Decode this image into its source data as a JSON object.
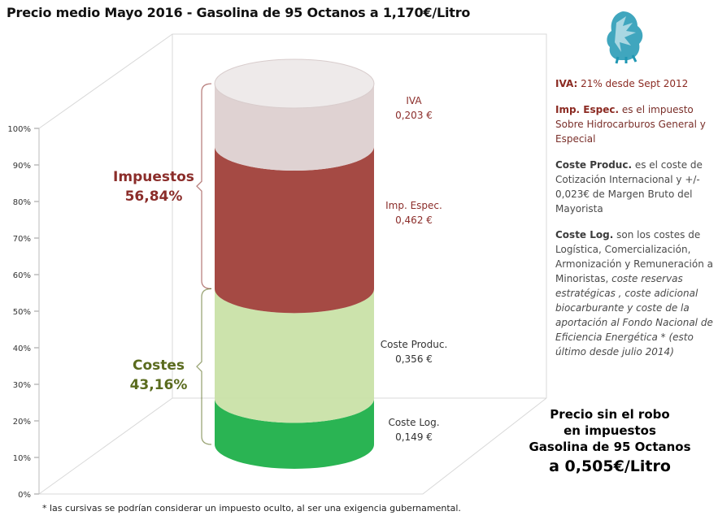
{
  "title": "Precio medio Mayo 2016 - Gasolina  de 95 Octanos  a 1,170€/Litro",
  "chart_data": {
    "type": "bar",
    "categories": [
      "Coste Log.",
      "Coste Produc.",
      "Imp. Espec.",
      "IVA"
    ],
    "series": [
      {
        "name": "Coste Log.",
        "value": 0.149,
        "label": "0,149 €",
        "color": "#1fb04a"
      },
      {
        "name": "Coste Produc.",
        "value": 0.356,
        "label": "0,356 €",
        "color": "#c9e1a8"
      },
      {
        "name": "Imp. Espec.",
        "value": 0.462,
        "label": "0,462 €",
        "color": "#a0403a"
      },
      {
        "name": "IVA",
        "value": 0.203,
        "label": "0,203 €",
        "color": "#ddd0d0"
      }
    ],
    "total": 1.17,
    "y_ticks": [
      "0%",
      "10%",
      "20%",
      "30%",
      "40%",
      "50%",
      "60%",
      "70%",
      "80%",
      "90%",
      "100%"
    ],
    "ylim": [
      0,
      1
    ],
    "groups": [
      {
        "name": "Impuestos",
        "pct": "56,84%",
        "color": "#8b2d2a",
        "from": 0.4316,
        "to": 1.0
      },
      {
        "name": "Costes",
        "pct": "43,16%",
        "color": "#5a6b1e",
        "from": 0.0,
        "to": 0.4316
      }
    ]
  },
  "notes": {
    "iva_key": "IVA:",
    "iva_text": " 21% desde Sept 2012",
    "imp_key": "Imp. Espec.",
    "imp_text": " es el impuesto Sobre Hidrocarburos General y Especial",
    "prod_key": "Coste Produc.",
    "prod_text": " es el coste de Cotización Internacional y +/- 0,023€ de Margen Bruto del Mayorista",
    "log_key": "Coste Log.",
    "log_text": " son los costes de Logística, Comercialización, Armonización y Remuneración a Minoristas, ",
    "log_italic": "coste reservas estratégicas , coste adicional biocarburante y coste de la aportación al Fondo Nacional de Eficiencia Energética * (esto último desde julio 2014)"
  },
  "summary": {
    "line1": "Precio sin el robo",
    "line2": "en impuestos",
    "line3": "Gasolina de 95 Octanos",
    "line4": "a 0,505€/Litro"
  },
  "footnote": "* las cursivas se podrían considerar un impuesto oculto, al ser una exigencia gubernamental."
}
